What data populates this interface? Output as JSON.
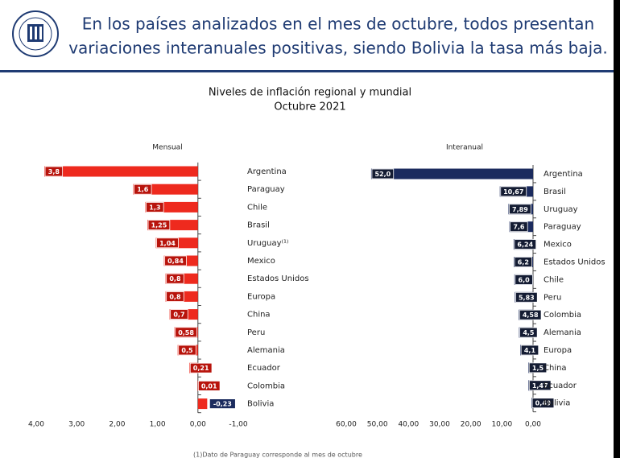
{
  "header": {
    "title_lines": [
      "En los países analizados en el  mes de octubre, todos presentan",
      "variaciones interanuales positivas, siendo Bolivia la tasa más baja."
    ]
  },
  "title_lines": [
    "Niveles de inflación regional y mundial",
    "Octubre 2021"
  ],
  "footnote": "(1)Dato de Paraguay corresponde al mes de octubre",
  "chart_data": [
    {
      "type": "hbar",
      "title": "Mensual",
      "color": "#ee2a1e",
      "label_box": "#b8140c",
      "categories": [
        "Argentina",
        "Paraguay",
        "Chile",
        "Brasil",
        "Uruguay⁽¹⁾",
        "Mexico",
        "Estados Unidos",
        "Europa",
        "China",
        "Peru",
        "Alemania",
        "Ecuador",
        "Colombia",
        "Bolivia"
      ],
      "values": [
        3.8,
        1.6,
        1.3,
        1.25,
        1.04,
        0.84,
        0.8,
        0.8,
        0.7,
        0.58,
        0.5,
        0.21,
        0.01,
        -0.23
      ],
      "value_labels": [
        "3,8",
        "1,6",
        "1,3",
        "1,25",
        "1,04",
        "0,84",
        "0,8",
        "0,8",
        "0,7",
        "0,58",
        "0,5",
        "0,21",
        "0,01",
        "-0,23"
      ],
      "xlim": [
        4,
        -1
      ],
      "xticks": [
        {
          "value": 4,
          "label": "4,00"
        },
        {
          "value": 3,
          "label": "3,00"
        },
        {
          "value": 2,
          "label": "2,00"
        },
        {
          "value": 1,
          "label": "1,00"
        },
        {
          "value": 0,
          "label": "0,00"
        },
        {
          "value": -1,
          "label": "-1,00"
        }
      ]
    },
    {
      "type": "hbar",
      "title": "Interanual",
      "color": "#1b2b5e",
      "label_box": "#141c33",
      "categories": [
        "Argentina",
        "Brasil",
        "Uruguay",
        "Paraguay",
        "Mexico",
        "Estados Unidos",
        "Chile",
        "Peru",
        "Colombia",
        "Alemania",
        "Europa",
        "China",
        "Ecuador",
        "Bolivia"
      ],
      "values": [
        52.0,
        10.67,
        7.89,
        7.6,
        6.24,
        6.2,
        6.0,
        5.83,
        4.58,
        4.5,
        4.1,
        1.5,
        1.47,
        0.49
      ],
      "value_labels": [
        "52,0",
        "10,67",
        "7,89",
        "7,6",
        "6,24",
        "6,2",
        "6,0",
        "5,83",
        "4,58",
        "4,5",
        "4,1",
        "1,5",
        "1,47",
        "0,49"
      ],
      "xlim": [
        60,
        0
      ],
      "xticks": [
        {
          "value": 60,
          "label": "60,00"
        },
        {
          "value": 50,
          "label": "50,00"
        },
        {
          "value": 40,
          "label": "40,00"
        },
        {
          "value": 30,
          "label": "30,00"
        },
        {
          "value": 20,
          "label": "20,00"
        },
        {
          "value": 10,
          "label": "10,00"
        },
        {
          "value": 0,
          "label": "0,00"
        }
      ]
    }
  ]
}
